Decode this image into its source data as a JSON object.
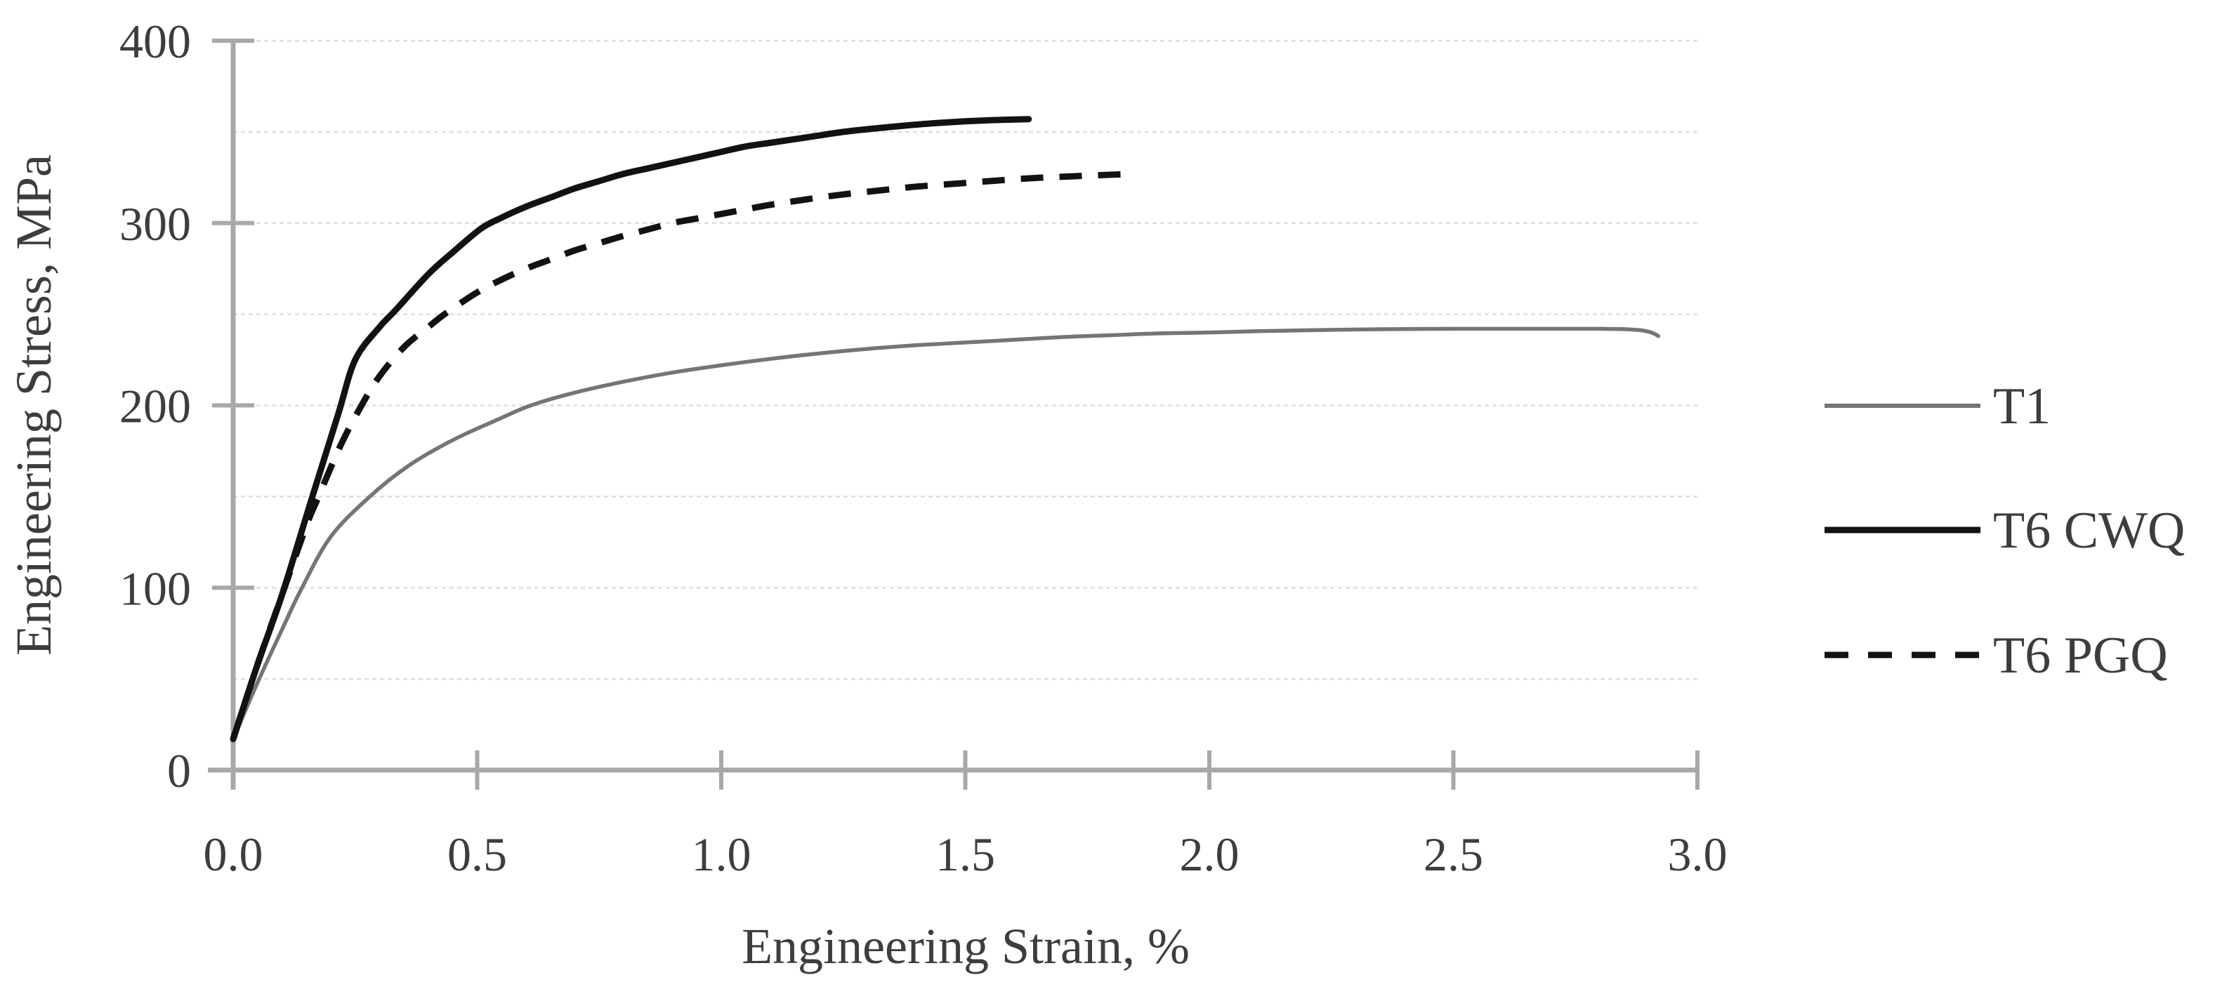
{
  "figure": {
    "background": "#ffffff"
  },
  "colors": {
    "gridline": "#dedede",
    "axis": "#a8a8a8",
    "tick": "#a8a8a8",
    "text": "#3d3d3d"
  },
  "chart_data": {
    "type": "line",
    "title": "",
    "xlabel": "Engineering Strain, %",
    "ylabel": "Engineering Stress, MPa",
    "xlim": [
      0.0,
      3.0
    ],
    "ylim": [
      0,
      400
    ],
    "grid": true,
    "minor_gridline_interval_mpa": 50,
    "x_ticks": [
      0.0,
      0.5,
      1.0,
      1.5,
      2.0,
      2.5,
      3.0
    ],
    "x_tick_labels": [
      "0.0",
      "0.5",
      "1.0",
      "1.5",
      "2.0",
      "2.5",
      "3.0"
    ],
    "y_ticks": [
      0,
      100,
      200,
      300,
      400
    ],
    "y_tick_labels": [
      "0",
      "100",
      "200",
      "300",
      "400"
    ],
    "legend_position": "right",
    "series": [
      {
        "name": "T1",
        "color": "#757575",
        "style": "solid",
        "width": 5.5,
        "points": [
          [
            0.0,
            17
          ],
          [
            0.05,
            48
          ],
          [
            0.1,
            77
          ],
          [
            0.141,
            100
          ],
          [
            0.2,
            128
          ],
          [
            0.28,
            150
          ],
          [
            0.36,
            167
          ],
          [
            0.45,
            181
          ],
          [
            0.54,
            192
          ],
          [
            0.61,
            200
          ],
          [
            0.7,
            207
          ],
          [
            0.8,
            213
          ],
          [
            0.9,
            218
          ],
          [
            1.0,
            222
          ],
          [
            1.1,
            225.5
          ],
          [
            1.2,
            228.5
          ],
          [
            1.3,
            231
          ],
          [
            1.4,
            233
          ],
          [
            1.5,
            234.5
          ],
          [
            1.6,
            236
          ],
          [
            1.7,
            237.5
          ],
          [
            1.8,
            238.5
          ],
          [
            1.9,
            239.5
          ],
          [
            2.0,
            240
          ],
          [
            2.1,
            240.7
          ],
          [
            2.2,
            241.2
          ],
          [
            2.3,
            241.6
          ],
          [
            2.4,
            241.9
          ],
          [
            2.5,
            242
          ],
          [
            2.6,
            242
          ],
          [
            2.7,
            242
          ],
          [
            2.8,
            242
          ],
          [
            2.85,
            241.8
          ],
          [
            2.89,
            241
          ],
          [
            2.91,
            239.5
          ],
          [
            2.92,
            238
          ]
        ]
      },
      {
        "name": "T6 CWQ",
        "color": "#121212",
        "style": "solid",
        "width": 9,
        "points": [
          [
            0.0,
            17
          ],
          [
            0.05,
            58
          ],
          [
            0.1,
            96
          ],
          [
            0.16,
            148
          ],
          [
            0.215,
            195
          ],
          [
            0.25,
            225
          ],
          [
            0.3,
            243
          ],
          [
            0.332,
            252
          ],
          [
            0.4,
            272
          ],
          [
            0.45,
            284
          ],
          [
            0.508,
            297
          ],
          [
            0.55,
            303
          ],
          [
            0.6,
            309
          ],
          [
            0.65,
            314
          ],
          [
            0.7,
            319
          ],
          [
            0.75,
            323
          ],
          [
            0.8,
            327
          ],
          [
            0.85,
            330
          ],
          [
            0.9,
            333
          ],
          [
            0.95,
            336
          ],
          [
            1.0,
            339
          ],
          [
            1.05,
            342
          ],
          [
            1.1,
            344
          ],
          [
            1.15,
            346
          ],
          [
            1.2,
            348
          ],
          [
            1.25,
            350
          ],
          [
            1.3,
            351.5
          ],
          [
            1.35,
            352.8
          ],
          [
            1.4,
            354
          ],
          [
            1.45,
            355
          ],
          [
            1.5,
            355.8
          ],
          [
            1.55,
            356.4
          ],
          [
            1.6,
            356.8
          ],
          [
            1.63,
            357
          ]
        ]
      },
      {
        "name": "T6 PGQ",
        "color": "#121212",
        "style": "dashed",
        "width": 9,
        "points": [
          [
            0.0,
            17
          ],
          [
            0.05,
            58
          ],
          [
            0.1,
            96
          ],
          [
            0.15,
            134
          ],
          [
            0.175,
            150
          ],
          [
            0.22,
            178
          ],
          [
            0.263,
            200
          ],
          [
            0.3,
            216
          ],
          [
            0.35,
            232
          ],
          [
            0.4,
            243
          ],
          [
            0.433,
            250
          ],
          [
            0.5,
            262
          ],
          [
            0.55,
            269
          ],
          [
            0.6,
            275
          ],
          [
            0.65,
            280
          ],
          [
            0.7,
            285
          ],
          [
            0.75,
            289
          ],
          [
            0.8,
            293
          ],
          [
            0.85,
            296.5
          ],
          [
            0.9,
            300
          ],
          [
            0.95,
            302.5
          ],
          [
            1.0,
            305
          ],
          [
            1.05,
            307.5
          ],
          [
            1.1,
            310
          ],
          [
            1.15,
            312
          ],
          [
            1.2,
            314
          ],
          [
            1.25,
            315.7
          ],
          [
            1.3,
            317.2
          ],
          [
            1.35,
            318.6
          ],
          [
            1.4,
            320
          ],
          [
            1.45,
            321
          ],
          [
            1.5,
            322
          ],
          [
            1.55,
            323
          ],
          [
            1.6,
            324
          ],
          [
            1.65,
            324.8
          ],
          [
            1.7,
            325.4
          ],
          [
            1.75,
            326
          ],
          [
            1.8,
            326.5
          ],
          [
            1.843,
            327
          ]
        ]
      }
    ]
  }
}
